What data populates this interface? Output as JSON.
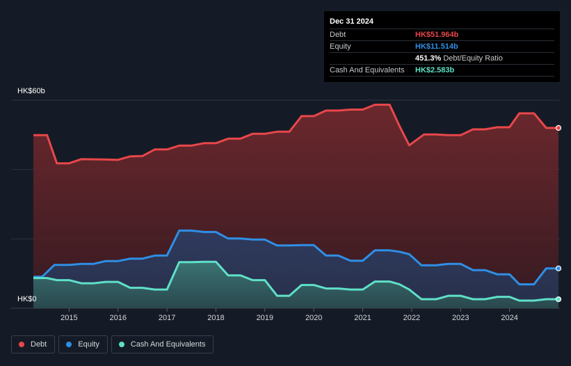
{
  "tooltip": {
    "date": "Dec 31 2024",
    "rows": [
      {
        "label": "Debt",
        "value": "HK$51.964b",
        "color": "#e8474a"
      },
      {
        "label": "Equity",
        "value": "HK$11.514b",
        "color": "#2f8fe6"
      },
      {
        "label": "",
        "value": "451.3%",
        "extra": "Debt/Equity Ratio",
        "color": "#ffffff"
      },
      {
        "label": "Cash And Equivalents",
        "value": "HK$2.583b",
        "color": "#5fe0c8"
      }
    ]
  },
  "legend": [
    {
      "label": "Debt",
      "color": "#e8474a"
    },
    {
      "label": "Equity",
      "color": "#2f8fe6"
    },
    {
      "label": "Cash And Equivalents",
      "color": "#5fe0c8"
    }
  ],
  "chart_data": {
    "type": "area",
    "y_tick_labels": [
      "HK$60b",
      "HK$0"
    ],
    "ylim": [
      0,
      60
    ],
    "xlim": [
      2014.27,
      2025.0
    ],
    "x_tick_labels": [
      "2015",
      "2016",
      "2017",
      "2018",
      "2019",
      "2020",
      "2021",
      "2022",
      "2023",
      "2024"
    ],
    "x_ticks": [
      2015,
      2016,
      2017,
      2018,
      2019,
      2020,
      2021,
      2022,
      2023,
      2024
    ],
    "series": [
      {
        "name": "Debt",
        "color": "#e8474a",
        "points": [
          [
            2014.27,
            49.9
          ],
          [
            2014.55,
            49.9
          ],
          [
            2014.75,
            41.8
          ],
          [
            2015.0,
            41.8
          ],
          [
            2015.25,
            43.0
          ],
          [
            2015.75,
            42.9
          ],
          [
            2016.0,
            42.8
          ],
          [
            2016.25,
            43.8
          ],
          [
            2016.5,
            43.9
          ],
          [
            2016.75,
            45.8
          ],
          [
            2017.0,
            45.8
          ],
          [
            2017.25,
            46.9
          ],
          [
            2017.5,
            46.9
          ],
          [
            2017.75,
            47.6
          ],
          [
            2018.0,
            47.6
          ],
          [
            2018.25,
            48.9
          ],
          [
            2018.5,
            48.9
          ],
          [
            2018.75,
            50.3
          ],
          [
            2019.0,
            50.3
          ],
          [
            2019.25,
            50.9
          ],
          [
            2019.5,
            50.9
          ],
          [
            2019.75,
            55.4
          ],
          [
            2020.0,
            55.4
          ],
          [
            2020.25,
            57.0
          ],
          [
            2020.5,
            57.0
          ],
          [
            2020.75,
            57.3
          ],
          [
            2021.0,
            57.3
          ],
          [
            2021.25,
            58.7
          ],
          [
            2021.55,
            58.7
          ],
          [
            2021.75,
            52.6
          ],
          [
            2021.95,
            47.0
          ],
          [
            2022.25,
            50.1
          ],
          [
            2022.5,
            50.1
          ],
          [
            2022.75,
            49.9
          ],
          [
            2023.0,
            49.9
          ],
          [
            2023.25,
            51.6
          ],
          [
            2023.5,
            51.6
          ],
          [
            2023.75,
            52.2
          ],
          [
            2024.0,
            52.2
          ],
          [
            2024.2,
            56.2
          ],
          [
            2024.5,
            56.2
          ],
          [
            2024.75,
            52.0
          ],
          [
            2025.0,
            52.0
          ]
        ]
      },
      {
        "name": "Equity",
        "color": "#2f8fe6",
        "points": [
          [
            2014.27,
            9.1
          ],
          [
            2014.45,
            9.1
          ],
          [
            2014.7,
            12.5
          ],
          [
            2015.0,
            12.5
          ],
          [
            2015.25,
            12.8
          ],
          [
            2015.5,
            12.8
          ],
          [
            2015.75,
            13.6
          ],
          [
            2016.0,
            13.6
          ],
          [
            2016.25,
            14.3
          ],
          [
            2016.5,
            14.3
          ],
          [
            2016.75,
            15.2
          ],
          [
            2017.0,
            15.2
          ],
          [
            2017.25,
            22.4
          ],
          [
            2017.5,
            22.4
          ],
          [
            2017.75,
            22.0
          ],
          [
            2018.0,
            22.0
          ],
          [
            2018.25,
            20.1
          ],
          [
            2018.5,
            20.1
          ],
          [
            2018.75,
            19.8
          ],
          [
            2019.0,
            19.8
          ],
          [
            2019.25,
            18.1
          ],
          [
            2019.5,
            18.1
          ],
          [
            2019.75,
            18.2
          ],
          [
            2020.0,
            18.2
          ],
          [
            2020.25,
            15.2
          ],
          [
            2020.5,
            15.2
          ],
          [
            2020.75,
            13.7
          ],
          [
            2021.0,
            13.7
          ],
          [
            2021.25,
            16.7
          ],
          [
            2021.55,
            16.7
          ],
          [
            2021.75,
            16.3
          ],
          [
            2021.95,
            15.6
          ],
          [
            2022.2,
            12.4
          ],
          [
            2022.5,
            12.4
          ],
          [
            2022.75,
            12.8
          ],
          [
            2023.0,
            12.8
          ],
          [
            2023.25,
            11.0
          ],
          [
            2023.5,
            11.0
          ],
          [
            2023.75,
            9.8
          ],
          [
            2024.0,
            9.8
          ],
          [
            2024.2,
            6.9
          ],
          [
            2024.5,
            6.9
          ],
          [
            2024.75,
            11.5
          ],
          [
            2025.0,
            11.5
          ]
        ]
      },
      {
        "name": "Cash And Equivalents",
        "color": "#5fe0c8",
        "points": [
          [
            2014.27,
            8.7
          ],
          [
            2014.55,
            8.7
          ],
          [
            2014.75,
            8.1
          ],
          [
            2015.0,
            8.1
          ],
          [
            2015.25,
            7.2
          ],
          [
            2015.5,
            7.2
          ],
          [
            2015.75,
            7.6
          ],
          [
            2016.0,
            7.6
          ],
          [
            2016.25,
            5.9
          ],
          [
            2016.5,
            5.9
          ],
          [
            2016.75,
            5.4
          ],
          [
            2017.0,
            5.4
          ],
          [
            2017.25,
            13.3
          ],
          [
            2017.5,
            13.3
          ],
          [
            2017.75,
            13.4
          ],
          [
            2018.0,
            13.4
          ],
          [
            2018.25,
            9.5
          ],
          [
            2018.5,
            9.5
          ],
          [
            2018.75,
            8.1
          ],
          [
            2019.0,
            8.1
          ],
          [
            2019.25,
            3.6
          ],
          [
            2019.5,
            3.6
          ],
          [
            2019.75,
            6.7
          ],
          [
            2020.0,
            6.7
          ],
          [
            2020.25,
            5.7
          ],
          [
            2020.5,
            5.7
          ],
          [
            2020.75,
            5.4
          ],
          [
            2021.0,
            5.4
          ],
          [
            2021.25,
            7.7
          ],
          [
            2021.55,
            7.7
          ],
          [
            2021.75,
            6.9
          ],
          [
            2021.95,
            5.4
          ],
          [
            2022.2,
            2.6
          ],
          [
            2022.5,
            2.6
          ],
          [
            2022.75,
            3.6
          ],
          [
            2023.0,
            3.6
          ],
          [
            2023.25,
            2.6
          ],
          [
            2023.5,
            2.6
          ],
          [
            2023.75,
            3.3
          ],
          [
            2024.0,
            3.3
          ],
          [
            2024.2,
            2.2
          ],
          [
            2024.5,
            2.2
          ],
          [
            2024.75,
            2.6
          ],
          [
            2025.0,
            2.6
          ]
        ]
      }
    ]
  }
}
